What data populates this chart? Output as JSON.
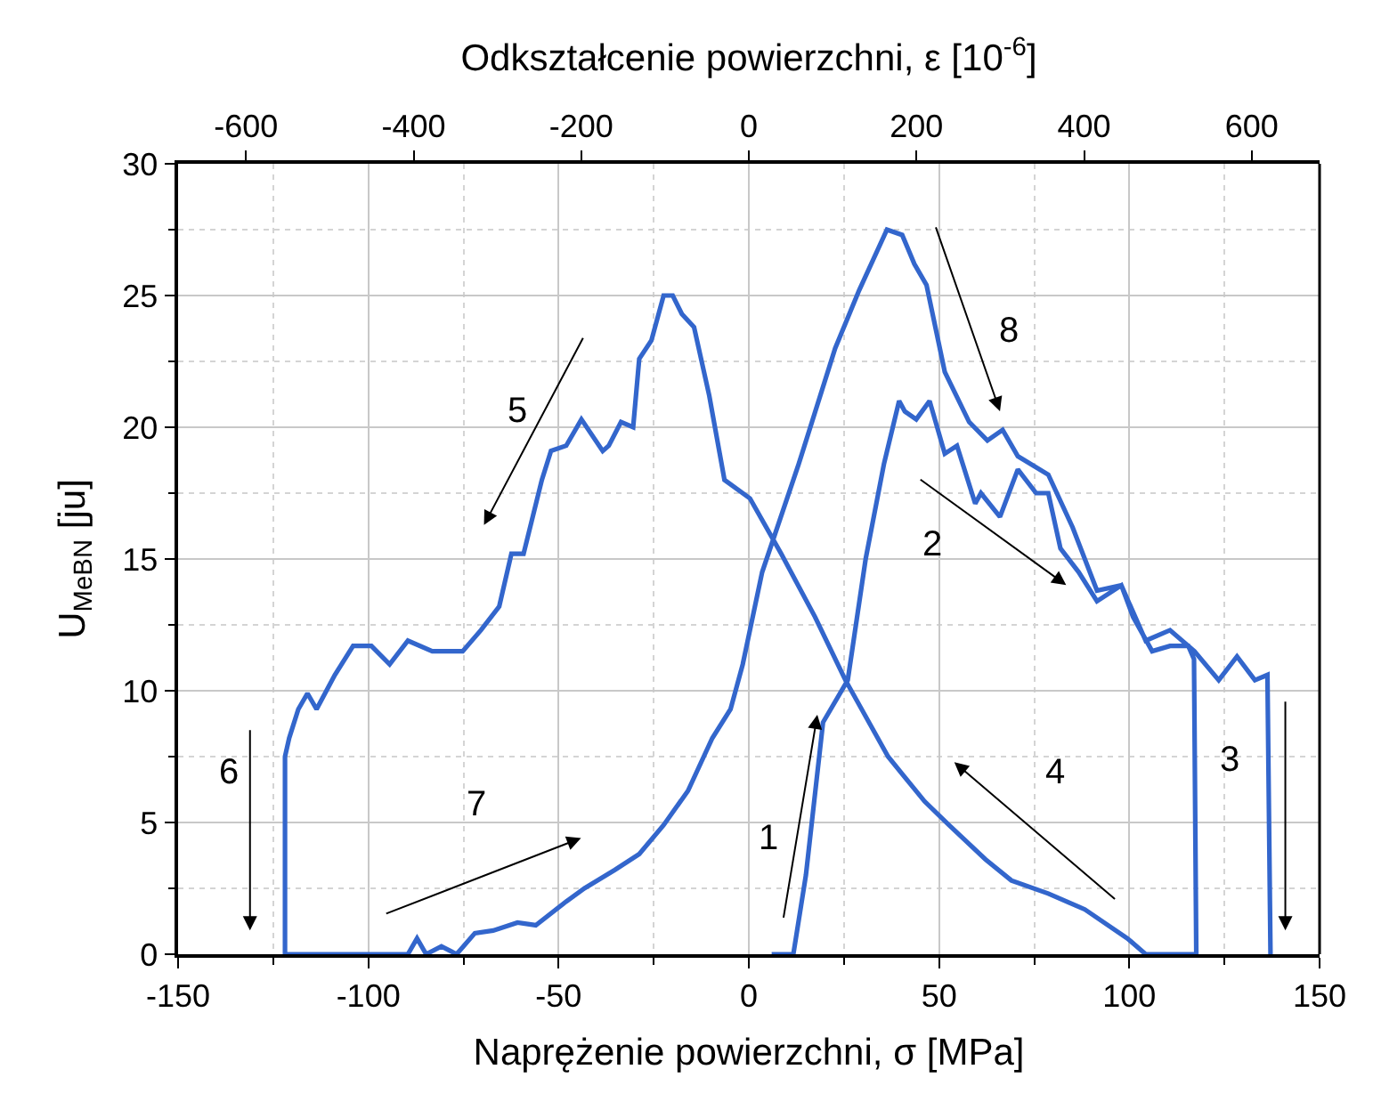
{
  "chart_data": {
    "type": "line",
    "xlabel": "Naprężenie powierzchni, σ [MPa]",
    "x2label": "Odkształcenie powierzchni, ε [10$^{-6}$]",
    "ylabel": "U$_{MeBN}$ [ju]",
    "series": [
      {
        "color": "#3366cc",
        "x": [
          6,
          11.7,
          15,
          19.5,
          26,
          30.7,
          35.5,
          39.5,
          41,
          44,
          47.5,
          51.5,
          54.7,
          59.5,
          61,
          66,
          70.7,
          75.5,
          78.7,
          81.9,
          86.7,
          91.5,
          97.9,
          101,
          106,
          110.7,
          115.5,
          117,
          117.6,
          104.3,
          99.5,
          88.3,
          78.7,
          69,
          62.2,
          52.6,
          46.2,
          36.6,
          25.4,
          17.4,
          8.5,
          0.3,
          -6.4,
          -10.4,
          -14.4,
          -17.6,
          -20,
          -22.4,
          -25.6,
          -28.8,
          -30.4,
          -33.6,
          -36.8,
          -38.4,
          -44,
          -48,
          -52,
          -54.4,
          -59.2,
          -62.4,
          -65.6,
          -70.4,
          -75.2,
          -80,
          -83.2,
          -89.6,
          -94.4,
          -99.2,
          -104,
          -108.8,
          -113.6,
          -116,
          -118.4,
          -120.8,
          -121.9,
          -121.9,
          -89.6,
          -87.2,
          -84.8,
          -80.8,
          -76.8,
          -72,
          -67.2,
          -60.8,
          -56,
          -48,
          -43.2,
          -35.2,
          -28.8,
          -22.4,
          -16,
          -9.6,
          -4.8,
          -1.6,
          3.5,
          13.1,
          22.7,
          29,
          36.3,
          40.3,
          43.5,
          46.7,
          51.5,
          57.9,
          62.7,
          66.7,
          70.7,
          78.7,
          85.1,
          91.5,
          97.9,
          104.3,
          110.7,
          117.1,
          123.5,
          128.3,
          133,
          136.3,
          137.1
        ],
        "values": [
          0,
          0,
          3,
          8.8,
          10.4,
          15,
          18.6,
          21,
          20.6,
          20.3,
          21,
          19,
          19.3,
          17.1,
          17.5,
          16.6,
          18.4,
          17.5,
          17.5,
          15.4,
          14.5,
          13.4,
          14,
          12.8,
          11.5,
          11.7,
          11.7,
          11.2,
          0,
          0,
          0.6,
          1.7,
          2.3,
          2.8,
          3.6,
          4.9,
          5.8,
          7.5,
          10.4,
          12.8,
          15.2,
          17.3,
          18,
          21.2,
          23.8,
          24.3,
          25,
          25,
          23.3,
          22.6,
          20,
          20.2,
          19.3,
          19.1,
          20.3,
          19.3,
          19.1,
          18,
          15.2,
          15.2,
          13.2,
          12.3,
          11.5,
          11.5,
          11.5,
          11.9,
          11,
          11.7,
          11.7,
          10.6,
          9.3,
          9.9,
          9.3,
          8.2,
          7.5,
          0,
          0,
          0.6,
          0,
          0.3,
          0,
          0.8,
          0.9,
          1.2,
          1.1,
          2,
          2.5,
          3.2,
          3.8,
          4.9,
          6.2,
          8.2,
          9.3,
          11,
          14.5,
          18.6,
          23,
          25.2,
          27.5,
          27.3,
          26.2,
          25.4,
          22.1,
          20.2,
          19.5,
          19.9,
          18.9,
          18.2,
          16.2,
          13.8,
          14,
          11.9,
          12.3,
          11.5,
          10.4,
          11.3,
          10.4,
          10.6,
          0
        ]
      }
    ],
    "xlim": [
      -150,
      150
    ],
    "xticks": [
      -150,
      -100,
      -50,
      0,
      50,
      100,
      150
    ],
    "x2lim": [
      -681,
      681
    ],
    "x2ticks": [
      -600,
      -400,
      -200,
      0,
      200,
      400,
      600
    ],
    "ylim": [
      0,
      30
    ],
    "yticks": [
      0,
      5,
      10,
      15,
      20,
      25,
      30
    ],
    "grid": true,
    "annotations": [
      "1",
      "2",
      "3",
      "4",
      "5",
      "6",
      "7",
      "8"
    ]
  }
}
